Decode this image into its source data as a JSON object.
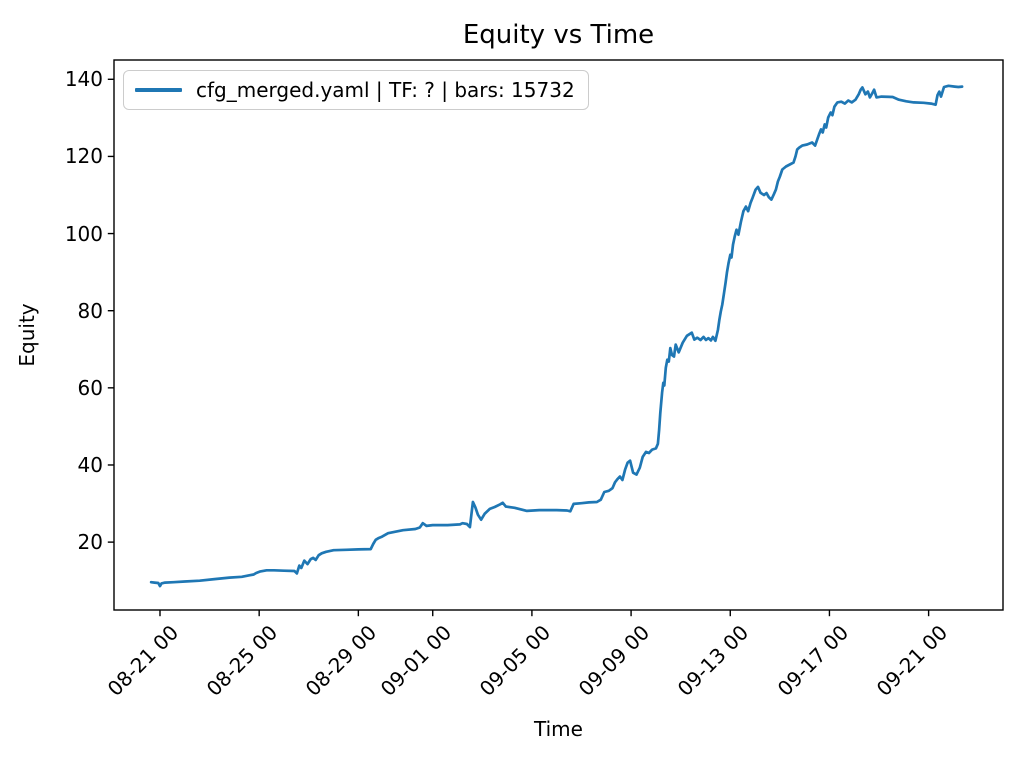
{
  "chart_data": {
    "type": "line",
    "title": "Equity vs Time",
    "xlabel": "Time",
    "ylabel": "Equity",
    "grid": false,
    "legend_position": "upper-left",
    "x_axis_kind": "datetime, labels formatted month-day hour, offsets in days from first shown midnight",
    "xlim_days": [
      0.145,
      36.0
    ],
    "ylim": [
      2.4,
      145.0
    ],
    "y_ticks": [
      20,
      40,
      60,
      80,
      100,
      120,
      140
    ],
    "x_ticks": [
      {
        "day": 2,
        "label": "08-21 00"
      },
      {
        "day": 6,
        "label": "08-25 00"
      },
      {
        "day": 10,
        "label": "08-29 00"
      },
      {
        "day": 13,
        "label": "09-01 00"
      },
      {
        "day": 17,
        "label": "09-05 00"
      },
      {
        "day": 21,
        "label": "09-09 00"
      },
      {
        "day": 25,
        "label": "09-13 00"
      },
      {
        "day": 29,
        "label": "09-17 00"
      },
      {
        "day": 33,
        "label": "09-21 00"
      }
    ],
    "series": [
      {
        "name": "cfg_merged.yaml | TF: ? | bars: 15732",
        "color": "#1f77b4",
        "line_width": 2.7,
        "points_day_equity": [
          [
            1.64,
            9.6
          ],
          [
            1.78,
            9.5
          ],
          [
            1.93,
            9.4
          ],
          [
            2.0,
            8.6
          ],
          [
            2.06,
            9.3
          ],
          [
            2.2,
            9.5
          ],
          [
            2.55,
            9.6
          ],
          [
            3.0,
            9.8
          ],
          [
            3.6,
            10.0
          ],
          [
            4.2,
            10.4
          ],
          [
            4.8,
            10.8
          ],
          [
            5.3,
            11.0
          ],
          [
            5.6,
            11.4
          ],
          [
            5.78,
            11.6
          ],
          [
            5.88,
            12.0
          ],
          [
            6.05,
            12.4
          ],
          [
            6.3,
            12.7
          ],
          [
            6.6,
            12.7
          ],
          [
            7.0,
            12.6
          ],
          [
            7.42,
            12.5
          ],
          [
            7.52,
            11.9
          ],
          [
            7.62,
            13.9
          ],
          [
            7.7,
            13.3
          ],
          [
            7.82,
            15.2
          ],
          [
            7.95,
            14.3
          ],
          [
            8.08,
            15.6
          ],
          [
            8.18,
            15.9
          ],
          [
            8.28,
            15.4
          ],
          [
            8.4,
            16.6
          ],
          [
            8.52,
            17.1
          ],
          [
            8.7,
            17.5
          ],
          [
            9.0,
            17.9
          ],
          [
            9.5,
            18.0
          ],
          [
            10.0,
            18.1
          ],
          [
            10.5,
            18.2
          ],
          [
            10.6,
            19.5
          ],
          [
            10.7,
            20.6
          ],
          [
            10.8,
            21.0
          ],
          [
            10.95,
            21.4
          ],
          [
            11.2,
            22.3
          ],
          [
            11.5,
            22.7
          ],
          [
            11.8,
            23.1
          ],
          [
            12.3,
            23.4
          ],
          [
            12.48,
            23.8
          ],
          [
            12.6,
            24.9
          ],
          [
            12.75,
            24.2
          ],
          [
            13.0,
            24.4
          ],
          [
            13.6,
            24.4
          ],
          [
            14.1,
            24.6
          ],
          [
            14.2,
            24.9
          ],
          [
            14.38,
            24.7
          ],
          [
            14.5,
            23.9
          ],
          [
            14.62,
            30.4
          ],
          [
            14.72,
            29.0
          ],
          [
            14.82,
            27.1
          ],
          [
            14.95,
            25.8
          ],
          [
            15.1,
            27.4
          ],
          [
            15.3,
            28.6
          ],
          [
            15.5,
            29.1
          ],
          [
            15.72,
            29.8
          ],
          [
            15.82,
            30.2
          ],
          [
            15.95,
            29.2
          ],
          [
            16.3,
            28.9
          ],
          [
            16.8,
            28.1
          ],
          [
            17.3,
            28.3
          ],
          [
            18.0,
            28.3
          ],
          [
            18.42,
            28.2
          ],
          [
            18.55,
            28.0
          ],
          [
            18.68,
            29.9
          ],
          [
            19.0,
            30.1
          ],
          [
            19.3,
            30.3
          ],
          [
            19.62,
            30.4
          ],
          [
            19.78,
            31.0
          ],
          [
            19.92,
            33.0
          ],
          [
            20.1,
            33.3
          ],
          [
            20.25,
            34.0
          ],
          [
            20.35,
            35.5
          ],
          [
            20.45,
            36.3
          ],
          [
            20.55,
            37.0
          ],
          [
            20.65,
            36.1
          ],
          [
            20.76,
            38.8
          ],
          [
            20.86,
            40.6
          ],
          [
            20.96,
            41.1
          ],
          [
            21.08,
            38.0
          ],
          [
            21.22,
            37.5
          ],
          [
            21.35,
            39.3
          ],
          [
            21.47,
            42.1
          ],
          [
            21.6,
            43.4
          ],
          [
            21.72,
            43.1
          ],
          [
            21.85,
            44.0
          ],
          [
            22.0,
            44.3
          ],
          [
            22.08,
            45.5
          ],
          [
            22.13,
            49.0
          ],
          [
            22.18,
            53.5
          ],
          [
            22.25,
            58.8
          ],
          [
            22.3,
            61.3
          ],
          [
            22.34,
            60.6
          ],
          [
            22.4,
            65.2
          ],
          [
            22.46,
            67.3
          ],
          [
            22.52,
            66.8
          ],
          [
            22.58,
            70.3
          ],
          [
            22.65,
            68.5
          ],
          [
            22.73,
            68.1
          ],
          [
            22.8,
            71.2
          ],
          [
            22.92,
            69.2
          ],
          [
            23.08,
            71.7
          ],
          [
            23.25,
            73.5
          ],
          [
            23.45,
            74.3
          ],
          [
            23.55,
            72.5
          ],
          [
            23.67,
            73.0
          ],
          [
            23.8,
            72.4
          ],
          [
            23.92,
            73.2
          ],
          [
            24.02,
            72.4
          ],
          [
            24.12,
            72.9
          ],
          [
            24.22,
            72.3
          ],
          [
            24.3,
            73.2
          ],
          [
            24.4,
            72.2
          ],
          [
            24.5,
            75.0
          ],
          [
            24.56,
            77.7
          ],
          [
            24.62,
            79.8
          ],
          [
            24.68,
            81.6
          ],
          [
            24.75,
            84.7
          ],
          [
            24.81,
            87.3
          ],
          [
            24.87,
            90.0
          ],
          [
            24.93,
            92.3
          ],
          [
            25.0,
            94.5
          ],
          [
            25.05,
            93.8
          ],
          [
            25.11,
            97.1
          ],
          [
            25.18,
            99.2
          ],
          [
            25.25,
            101.0
          ],
          [
            25.33,
            99.7
          ],
          [
            25.43,
            103.0
          ],
          [
            25.53,
            105.8
          ],
          [
            25.63,
            107.0
          ],
          [
            25.72,
            105.8
          ],
          [
            25.82,
            108.0
          ],
          [
            25.9,
            109.3
          ],
          [
            26.02,
            111.4
          ],
          [
            26.12,
            112.1
          ],
          [
            26.22,
            110.6
          ],
          [
            26.36,
            110.0
          ],
          [
            26.46,
            110.5
          ],
          [
            26.56,
            109.4
          ],
          [
            26.66,
            108.8
          ],
          [
            26.76,
            110.2
          ],
          [
            26.84,
            111.4
          ],
          [
            26.92,
            113.5
          ],
          [
            27.0,
            114.8
          ],
          [
            27.1,
            116.6
          ],
          [
            27.25,
            117.4
          ],
          [
            27.4,
            117.9
          ],
          [
            27.55,
            118.4
          ],
          [
            27.63,
            120.0
          ],
          [
            27.7,
            121.8
          ],
          [
            27.78,
            122.3
          ],
          [
            27.9,
            122.8
          ],
          [
            28.1,
            123.1
          ],
          [
            28.3,
            123.6
          ],
          [
            28.42,
            122.8
          ],
          [
            28.58,
            125.7
          ],
          [
            28.66,
            127.0
          ],
          [
            28.73,
            126.2
          ],
          [
            28.81,
            128.3
          ],
          [
            28.87,
            127.5
          ],
          [
            28.95,
            130.1
          ],
          [
            29.05,
            131.4
          ],
          [
            29.12,
            130.7
          ],
          [
            29.2,
            132.9
          ],
          [
            29.32,
            134.0
          ],
          [
            29.48,
            134.2
          ],
          [
            29.62,
            133.7
          ],
          [
            29.76,
            134.5
          ],
          [
            29.9,
            134.0
          ],
          [
            30.05,
            134.7
          ],
          [
            30.18,
            136.1
          ],
          [
            30.26,
            137.3
          ],
          [
            30.33,
            137.9
          ],
          [
            30.45,
            136.1
          ],
          [
            30.55,
            136.8
          ],
          [
            30.63,
            135.3
          ],
          [
            30.72,
            136.3
          ],
          [
            30.8,
            137.3
          ],
          [
            30.9,
            135.3
          ],
          [
            31.1,
            135.5
          ],
          [
            31.55,
            135.4
          ],
          [
            31.8,
            134.7
          ],
          [
            32.1,
            134.3
          ],
          [
            32.4,
            134.0
          ],
          [
            32.8,
            133.9
          ],
          [
            33.1,
            133.7
          ],
          [
            33.28,
            133.4
          ],
          [
            33.36,
            135.9
          ],
          [
            33.43,
            136.8
          ],
          [
            33.5,
            135.5
          ],
          [
            33.62,
            138.0
          ],
          [
            33.8,
            138.3
          ],
          [
            34.05,
            138.1
          ],
          [
            34.2,
            138.0
          ],
          [
            34.35,
            138.1
          ]
        ]
      }
    ],
    "colors": {
      "line": "#1f77b4",
      "text": "#000000",
      "spine": "#000000",
      "legend_border": "#cccccc",
      "background": "#ffffff"
    }
  },
  "legend": {
    "entries": [
      {
        "label": "cfg_merged.yaml | TF: ? | bars: 15732",
        "color": "#1f77b4"
      }
    ]
  }
}
